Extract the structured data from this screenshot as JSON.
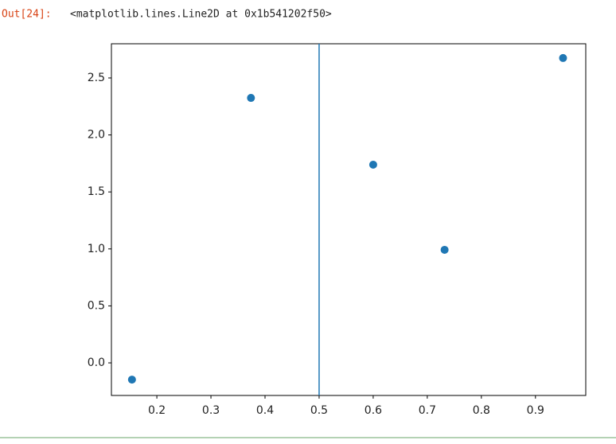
{
  "output": {
    "prompt": "Out[24]:",
    "text": "<matplotlib.lines.Line2D at 0x1b541202f50>"
  },
  "chart_data": {
    "type": "scatter",
    "color": "#1f77b4",
    "x": [
      0.154,
      0.374,
      0.6,
      0.732,
      0.951
    ],
    "values": [
      -0.147,
      2.325,
      1.739,
      0.992,
      2.675
    ],
    "vlines": [
      0.5
    ],
    "xlim": [
      0.116,
      0.993
    ],
    "ylim": [
      -0.286,
      2.8
    ],
    "xticks": [
      0.2,
      0.3,
      0.4,
      0.5,
      0.6,
      0.7,
      0.8,
      0.9
    ],
    "yticks": [
      {
        "value": 0,
        "label": "0.0"
      },
      0.5,
      {
        "value": 1,
        "label": "1.0"
      },
      1.5,
      {
        "value": 2,
        "label": "2.0"
      },
      2.5
    ]
  }
}
